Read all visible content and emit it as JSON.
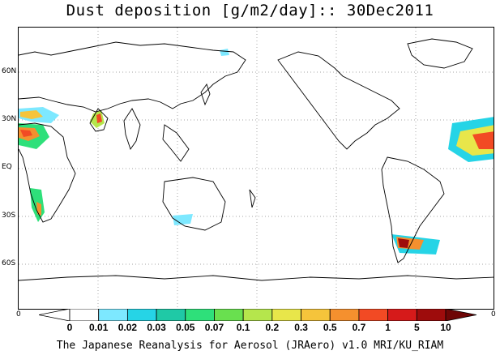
{
  "title": "Dust deposition [g/m2/day]:: 30Dec2011",
  "footer": "The Japanese Reanalysis for Aerosol (JRAero) v1.0 MRI/KU_RIAM",
  "latitude_labels": [
    "60N",
    "30N",
    "EQ",
    "30S",
    "60S"
  ],
  "corner_labels": {
    "left": "0",
    "right": "0"
  },
  "colorbar": {
    "labels": [
      "0",
      "0.01",
      "0.02",
      "0.03",
      "0.05",
      "0.07",
      "0.1",
      "0.2",
      "0.3",
      "0.5",
      "0.7",
      "1",
      "5",
      "10"
    ],
    "colors": [
      "#ffffff",
      "#ffffff",
      "#7de8ff",
      "#26d4e6",
      "#1fc9a6",
      "#2ee07a",
      "#69e04f",
      "#b5e64c",
      "#e8e64a",
      "#f5c43b",
      "#f5902e",
      "#f24a24",
      "#d61a1a",
      "#9e0c0c",
      "#6e0606"
    ]
  },
  "colors": {
    "land_outline": "#000000",
    "grid": "#888888"
  }
}
